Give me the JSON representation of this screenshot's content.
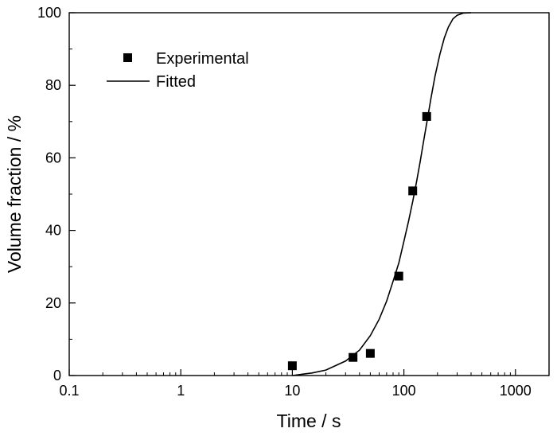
{
  "chart_data": {
    "type": "scatter",
    "xscale": "log",
    "xlim": [
      0.1,
      2000
    ],
    "ylim": [
      0,
      100
    ],
    "xlabel": "Time / s",
    "ylabel": "Volume fraction / %",
    "xticks": [
      {
        "value": 0.1,
        "label": "0.1"
      },
      {
        "value": 1,
        "label": "1"
      },
      {
        "value": 10,
        "label": "10"
      },
      {
        "value": 100,
        "label": "100"
      },
      {
        "value": 1000,
        "label": "1000"
      }
    ],
    "yticks": [
      {
        "value": 0,
        "label": "0"
      },
      {
        "value": 20,
        "label": "20"
      },
      {
        "value": 40,
        "label": "40"
      },
      {
        "value": 60,
        "label": "60"
      },
      {
        "value": 80,
        "label": "80"
      },
      {
        "value": 100,
        "label": "100"
      }
    ],
    "grid": false,
    "legend_position": "top-left",
    "series": [
      {
        "name": "Experimental",
        "type": "scatter",
        "marker": "square",
        "color": "#000000",
        "points": [
          {
            "x": 10,
            "y": 2.7
          },
          {
            "x": 35,
            "y": 5.0
          },
          {
            "x": 50,
            "y": 6.1
          },
          {
            "x": 90,
            "y": 27.4
          },
          {
            "x": 120,
            "y": 50.9
          },
          {
            "x": 160,
            "y": 71.4
          }
        ]
      },
      {
        "name": "Fitted",
        "type": "line",
        "color": "#000000",
        "points": [
          {
            "x": 10,
            "y": 0
          },
          {
            "x": 15,
            "y": 0.7
          },
          {
            "x": 20,
            "y": 1.5
          },
          {
            "x": 30,
            "y": 4.0
          },
          {
            "x": 40,
            "y": 7.0
          },
          {
            "x": 50,
            "y": 11.0
          },
          {
            "x": 60,
            "y": 15.5
          },
          {
            "x": 70,
            "y": 20.5
          },
          {
            "x": 80,
            "y": 26.0
          },
          {
            "x": 90,
            "y": 31.0
          },
          {
            "x": 100,
            "y": 37.0
          },
          {
            "x": 110,
            "y": 42.5
          },
          {
            "x": 120,
            "y": 48.0
          },
          {
            "x": 130,
            "y": 53.5
          },
          {
            "x": 140,
            "y": 59.0
          },
          {
            "x": 150,
            "y": 64.5
          },
          {
            "x": 160,
            "y": 69.5
          },
          {
            "x": 175,
            "y": 76.5
          },
          {
            "x": 190,
            "y": 82.5
          },
          {
            "x": 210,
            "y": 88.5
          },
          {
            "x": 230,
            "y": 93.0
          },
          {
            "x": 250,
            "y": 96.0
          },
          {
            "x": 275,
            "y": 98.3
          },
          {
            "x": 300,
            "y": 99.3
          },
          {
            "x": 340,
            "y": 99.9
          },
          {
            "x": 400,
            "y": 100
          }
        ]
      }
    ]
  }
}
